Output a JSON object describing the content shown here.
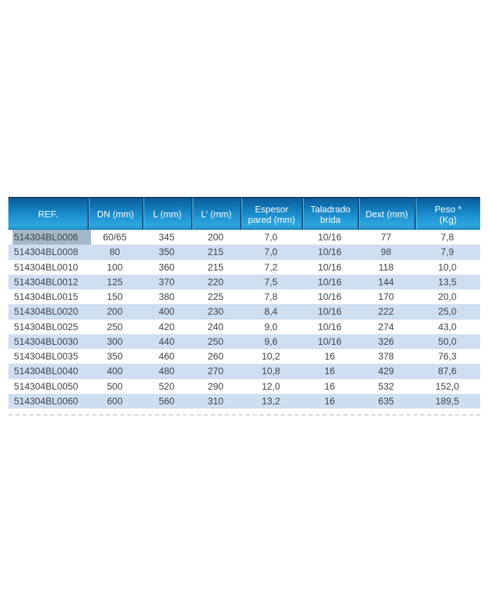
{
  "table": {
    "columns": [
      {
        "key": "ref",
        "label": "REF."
      },
      {
        "key": "dn",
        "label": "DN (mm)"
      },
      {
        "key": "l",
        "label": "L (mm)"
      },
      {
        "key": "l_prime",
        "label": "L' (mm)"
      },
      {
        "key": "espesor_pared",
        "label": "Espesor pared (mm)"
      },
      {
        "key": "taladrado_brida",
        "label": "Taladrado brida"
      },
      {
        "key": "dext",
        "label": "Dext (mm)"
      },
      {
        "key": "peso",
        "label": "Peso * (Kg)"
      }
    ],
    "rows": [
      [
        "514304BL0006",
        "60/65",
        "345",
        "200",
        "7,0",
        "10/16",
        "77",
        "7,8"
      ],
      [
        "514304BL0008",
        "80",
        "350",
        "215",
        "7,0",
        "10/16",
        "98",
        "7,9"
      ],
      [
        "514304BL0010",
        "100",
        "360",
        "215",
        "7,2",
        "10/16",
        "118",
        "10,0"
      ],
      [
        "514304BL0012",
        "125",
        "370",
        "220",
        "7,5",
        "10/16",
        "144",
        "13,5"
      ],
      [
        "514304BL0015",
        "150",
        "380",
        "225",
        "7,8",
        "10/16",
        "170",
        "20,0"
      ],
      [
        "514304BL0020",
        "200",
        "400",
        "230",
        "8,4",
        "10/16",
        "222",
        "25,0"
      ],
      [
        "514304BL0025",
        "250",
        "420",
        "240",
        "9,0",
        "10/16",
        "274",
        "43,0"
      ],
      [
        "514304BL0030",
        "300",
        "440",
        "250",
        "9,6",
        "10/16",
        "326",
        "50,0"
      ],
      [
        "514304BL0035",
        "350",
        "460",
        "260",
        "10,2",
        "16",
        "378",
        "76,3"
      ],
      [
        "514304BL0040",
        "400",
        "480",
        "270",
        "10,8",
        "16",
        "429",
        "87,6"
      ],
      [
        "514304BL0050",
        "500",
        "520",
        "290",
        "12,0",
        "16",
        "532",
        "152,0"
      ],
      [
        "514304BL0060",
        "600",
        "560",
        "310",
        "13,2",
        "16",
        "635",
        "189,5"
      ]
    ],
    "selected_cell": {
      "row": 0,
      "column": 0
    },
    "colors": {
      "header_gradient_top": "#0d5c99",
      "header_gradient_mid": "#2196d4",
      "header_gradient_bottom": "#1e88c2",
      "header_text": "#ffffff",
      "row_stripe": "#cfdff2",
      "row_plain": "#ffffff",
      "cell_text": "#3f444a",
      "selection_highlight": "#a4b9c8",
      "separator_dark": "#11507f",
      "separator_light": "#5fc0ec"
    }
  }
}
